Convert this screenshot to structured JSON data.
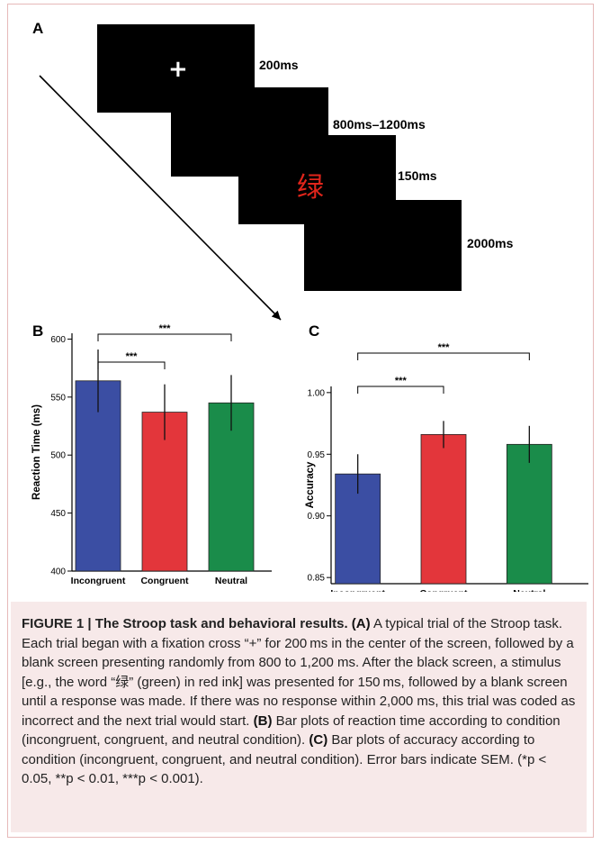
{
  "panel_a": {
    "label": "A",
    "fixation_symbol": "+",
    "stimulus_char": "绿",
    "times": [
      "200ms",
      "800ms–1200ms",
      "150ms",
      "2000ms"
    ]
  },
  "chart_data": [
    {
      "panel": "B",
      "type": "bar",
      "categories": [
        "Incongruent",
        "Congruent",
        "Neutral"
      ],
      "values": [
        564,
        537,
        545
      ],
      "errors": [
        27,
        24,
        24
      ],
      "colors": [
        "#3b4ea3",
        "#e3363b",
        "#1a8c4a"
      ],
      "ylabel": "Reaction Time  (ms)",
      "ylim": [
        400,
        605
      ],
      "yticks": [
        400,
        450,
        500,
        550,
        600
      ],
      "significance": [
        {
          "from": 0,
          "to": 1,
          "label": "***"
        },
        {
          "from": 0,
          "to": 2,
          "label": "***"
        }
      ]
    },
    {
      "panel": "C",
      "type": "bar",
      "categories": [
        "Incongruent",
        "Congruent",
        "Neutral"
      ],
      "values": [
        0.934,
        0.966,
        0.958
      ],
      "errors": [
        0.016,
        0.011,
        0.015
      ],
      "colors": [
        "#3b4ea3",
        "#e3363b",
        "#1a8c4a"
      ],
      "ylabel": "Accuracy",
      "ylim": [
        0.845,
        1.005
      ],
      "yticks": [
        0.85,
        0.9,
        0.95,
        1.0
      ],
      "ytick_labels": [
        "0.85",
        "0.90",
        "0.95",
        "1.00"
      ],
      "significance": [
        {
          "from": 0,
          "to": 1,
          "label": "***"
        },
        {
          "from": 0,
          "to": 2,
          "label": "***"
        }
      ]
    }
  ],
  "caption": {
    "title": "FIGURE 1 | The Stroop task and behavioral results.",
    "a_tag": "(A)",
    "a_text": " A typical trial of the Stroop task. Each trial began with a fixation cross “+” for 200 ms in the center of the screen, followed by a blank screen presenting randomly from 800 to 1,200 ms. After the black screen, a stimulus [e.g., the word “绿” (green) in red ink] was presented for 150 ms, followed by a blank screen until a response was made. If there was no response within 2,000 ms, this trial was coded as incorrect and the next trial would start.",
    "b_tag": "(B)",
    "b_text": " Bar plots of reaction time according to condition (incongruent, congruent, and neutral condition).",
    "c_tag": "(C)",
    "c_text": " Bar plots of accuracy according to condition (incongruent, congruent, and neutral condition). Error bars indicate SEM. (*p < 0.05, **p < 0.01, ***p < 0.001)."
  }
}
